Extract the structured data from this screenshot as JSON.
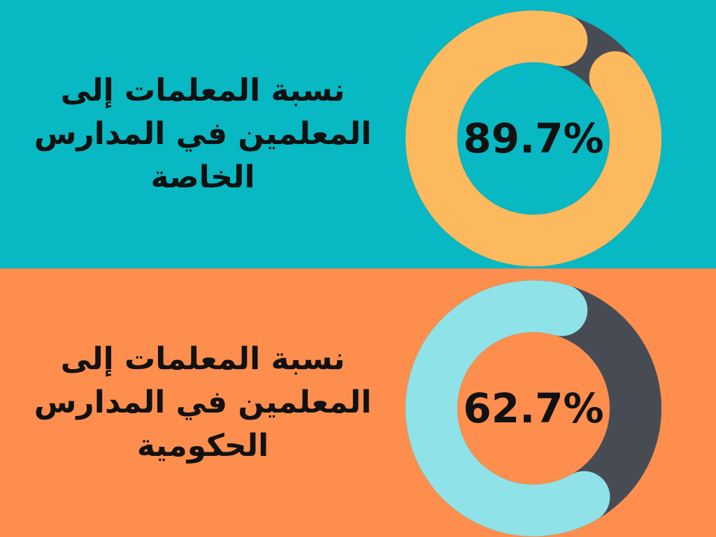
{
  "chart_data": [
    {
      "type": "pie",
      "style": "donut",
      "label_lines": [
        "نسبة المعلمات إلى",
        "المعلمين في المدارس",
        "الخاصة"
      ],
      "value": 89.7,
      "value_label": "89.7%",
      "background_color": "#08B8C2",
      "fill_color": "#FDB95E",
      "track_color": "#474C54"
    },
    {
      "type": "pie",
      "style": "donut",
      "label_lines": [
        "نسبة المعلمات إلى",
        "المعلمين في المدارس",
        "الحكومية"
      ],
      "value": 62.7,
      "value_label": "62.7%",
      "background_color": "#FE8E4E",
      "fill_color": "#8FE3E8",
      "track_color": "#474C54"
    }
  ]
}
